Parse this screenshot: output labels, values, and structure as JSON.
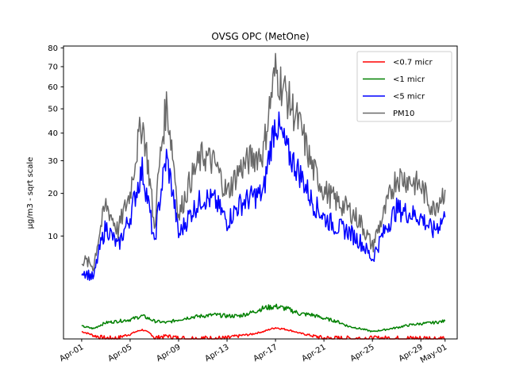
{
  "chart_data": {
    "type": "line",
    "title": "OVSG OPC (MetOne)",
    "xlabel": "",
    "ylabel": "μg/m3 - sqrt scale",
    "y_scale": "sqrt",
    "ylim": [
      0,
      81
    ],
    "xlim": [
      "2023-03-30T12:00",
      "2023-05-02T00:00"
    ],
    "y_ticks": [
      10,
      20,
      30,
      40,
      50,
      60,
      70,
      80
    ],
    "x_ticks": [
      "Apr-01",
      "Apr-05",
      "Apr-09",
      "Apr-13",
      "Apr-17",
      "Apr-21",
      "Apr-25",
      "Apr-29",
      "May-01"
    ],
    "legend_position": "top-right",
    "grid": false,
    "series": [
      {
        "name": "<0.7 micr",
        "color": "#ff0000",
        "x": [
          "Apr-01",
          "Apr-02",
          "Apr-03",
          "Apr-04",
          "Apr-05",
          "Apr-06",
          "Apr-07",
          "Apr-08",
          "Apr-09",
          "Apr-10",
          "Apr-11",
          "Apr-12",
          "Apr-13",
          "Apr-14",
          "Apr-15",
          "Apr-16",
          "Apr-17",
          "Apr-18",
          "Apr-19",
          "Apr-20",
          "Apr-21",
          "Apr-22",
          "Apr-23",
          "Apr-24",
          "Apr-25",
          "Apr-26",
          "Apr-27",
          "Apr-28",
          "Apr-29",
          "Apr-30",
          "May-01"
        ],
        "values": [
          0.05,
          0.01,
          0,
          0,
          0.02,
          0.08,
          0,
          0.01,
          0,
          0,
          0,
          0,
          0,
          0.01,
          0.02,
          0.05,
          0.12,
          0.08,
          0.03,
          0.01,
          0,
          0,
          0,
          0,
          0,
          0,
          0,
          0,
          0,
          0,
          0
        ]
      },
      {
        "name": "<1 micr",
        "color": "#008000",
        "x": [
          "Apr-01",
          "Apr-02",
          "Apr-03",
          "Apr-04",
          "Apr-05",
          "Apr-06",
          "Apr-07",
          "Apr-08",
          "Apr-09",
          "Apr-10",
          "Apr-11",
          "Apr-12",
          "Apr-13",
          "Apr-14",
          "Apr-15",
          "Apr-16",
          "Apr-17",
          "Apr-18",
          "Apr-19",
          "Apr-20",
          "Apr-21",
          "Apr-22",
          "Apr-23",
          "Apr-24",
          "Apr-25",
          "Apr-26",
          "Apr-27",
          "Apr-28",
          "Apr-29",
          "Apr-30",
          "May-01"
        ],
        "values": [
          0.15,
          0.1,
          0.25,
          0.3,
          0.35,
          0.5,
          0.3,
          0.25,
          0.35,
          0.45,
          0.5,
          0.55,
          0.5,
          0.5,
          0.65,
          0.9,
          1.0,
          0.85,
          0.6,
          0.55,
          0.4,
          0.3,
          0.15,
          0.1,
          0.05,
          0.08,
          0.12,
          0.18,
          0.22,
          0.25,
          0.3
        ]
      },
      {
        "name": "<5 micr",
        "color": "#0000ff",
        "x": [
          "Apr-01",
          "Apr-02",
          "Apr-03",
          "Apr-04",
          "Apr-05",
          "Apr-06",
          "Apr-07",
          "Apr-08",
          "Apr-09",
          "Apr-10",
          "Apr-11",
          "Apr-12",
          "Apr-13",
          "Apr-14",
          "Apr-15",
          "Apr-16",
          "Apr-17",
          "Apr-18",
          "Apr-19",
          "Apr-20",
          "Apr-21",
          "Apr-22",
          "Apr-23",
          "Apr-24",
          "Apr-25",
          "Apr-26",
          "Apr-27",
          "Apr-28",
          "Apr-29",
          "Apr-30",
          "May-01"
        ],
        "values": [
          4.5,
          3.5,
          12,
          8,
          14,
          27,
          8,
          31,
          10,
          15,
          19,
          18,
          13,
          17,
          19,
          20,
          45,
          33,
          26,
          18,
          14,
          12,
          11,
          9,
          6,
          11,
          16,
          15,
          14,
          11,
          14
        ]
      },
      {
        "name": "PM10",
        "color": "#696969",
        "x": [
          "Apr-01",
          "Apr-02",
          "Apr-03",
          "Apr-04",
          "Apr-05",
          "Apr-06",
          "Apr-07",
          "Apr-08",
          "Apr-09",
          "Apr-10",
          "Apr-11",
          "Apr-12",
          "Apr-13",
          "Apr-14",
          "Apr-15",
          "Apr-16",
          "Apr-17",
          "Apr-18",
          "Apr-19",
          "Apr-20",
          "Apr-21",
          "Apr-22",
          "Apr-23",
          "Apr-24",
          "Apr-25",
          "Apr-26",
          "Apr-27",
          "Apr-28",
          "Apr-29",
          "Apr-30",
          "May-01"
        ],
        "values": [
          6,
          5,
          17,
          11,
          20,
          45,
          11,
          52,
          14,
          24,
          32,
          29,
          20,
          27,
          31,
          33,
          68,
          55,
          43,
          28,
          21,
          18,
          16,
          13,
          8,
          15,
          25,
          24,
          22,
          16,
          21
        ]
      }
    ]
  }
}
